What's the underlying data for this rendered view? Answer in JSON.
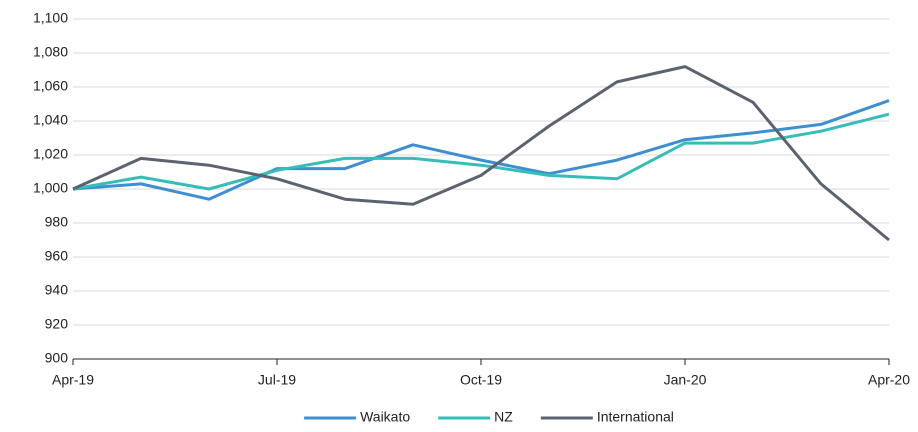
{
  "chart_data": {
    "type": "line",
    "categories": [
      "Apr-19",
      null,
      null,
      "Jul-19",
      null,
      null,
      "Oct-19",
      null,
      null,
      "Jan-20",
      null,
      null,
      "Apr-20"
    ],
    "series": [
      {
        "name": "Waikato",
        "color": "#3d8fd1",
        "values": [
          1000,
          1003,
          994,
          1012,
          1012,
          1026,
          1017,
          1009,
          1017,
          1029,
          1033,
          1038,
          1052
        ]
      },
      {
        "name": "NZ",
        "color": "#35bdb8",
        "values": [
          1000,
          1007,
          1000,
          1011,
          1018,
          1018,
          1014,
          1008,
          1006,
          1027,
          1027,
          1034,
          1044
        ]
      },
      {
        "name": "International",
        "color": "#5b6270",
        "values": [
          1000,
          1018,
          1014,
          1006,
          994,
          991,
          1008,
          1037,
          1063,
          1072,
          1051,
          1003,
          970
        ]
      }
    ],
    "ylim": [
      900,
      1100
    ],
    "yticks": [
      900,
      920,
      940,
      960,
      980,
      {
        "value": 1000,
        "label": "1,000"
      },
      {
        "value": 1020,
        "label": "1,020"
      },
      {
        "value": 1040,
        "label": "1,040"
      },
      {
        "value": 1060,
        "label": "1,060"
      },
      {
        "value": 1080,
        "label": "1,080"
      },
      {
        "value": 1100,
        "label": "1,100"
      }
    ],
    "grid": true,
    "legend": "bottom"
  }
}
